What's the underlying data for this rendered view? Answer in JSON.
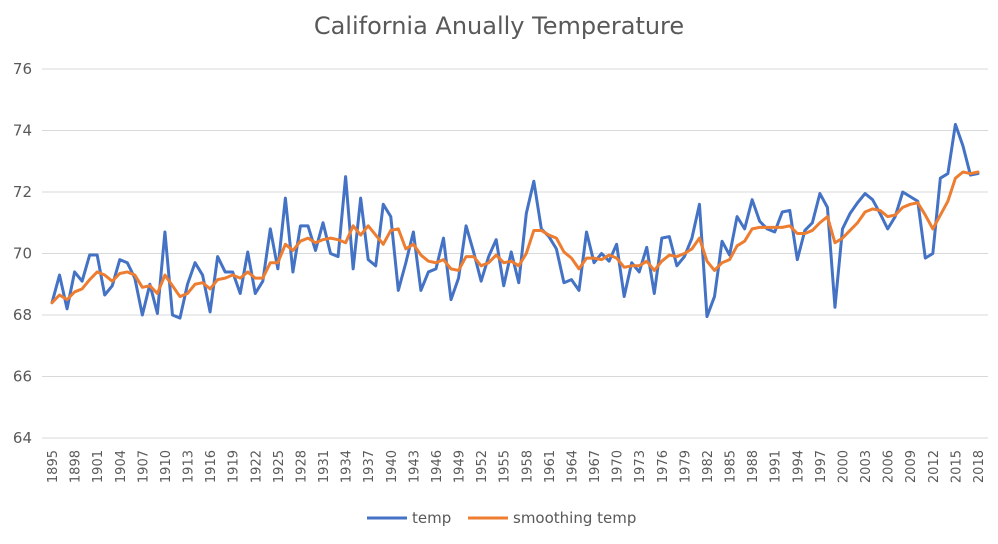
{
  "chart_data": {
    "type": "line",
    "title": "California Anually Temperature",
    "xlabel": "",
    "ylabel": "",
    "ylim": [
      64,
      76
    ],
    "yticks": [
      64,
      66,
      68,
      70,
      72,
      74,
      76
    ],
    "grid": "horizontal",
    "legend_position": "bottom",
    "x_tick_labels": [
      "1895",
      "1898",
      "1901",
      "1904",
      "1907",
      "1910",
      "1913",
      "1916",
      "1919",
      "1922",
      "1925",
      "1928",
      "1931",
      "1934",
      "1937",
      "1940",
      "1943",
      "1946",
      "1949",
      "1952",
      "1955",
      "1958",
      "1961",
      "1964",
      "1967",
      "1970",
      "1973",
      "1976",
      "1979",
      "1982",
      "1985",
      "1988",
      "1991",
      "1994",
      "1997",
      "2000",
      "2003",
      "2006",
      "2009",
      "2012",
      "2015",
      "2018"
    ],
    "x": [
      1895,
      1896,
      1897,
      1898,
      1899,
      1900,
      1901,
      1902,
      1903,
      1904,
      1905,
      1906,
      1907,
      1908,
      1909,
      1910,
      1911,
      1912,
      1913,
      1914,
      1915,
      1916,
      1917,
      1918,
      1919,
      1920,
      1921,
      1922,
      1923,
      1924,
      1925,
      1926,
      1927,
      1928,
      1929,
      1930,
      1931,
      1932,
      1933,
      1934,
      1935,
      1936,
      1937,
      1938,
      1939,
      1940,
      1941,
      1942,
      1943,
      1944,
      1945,
      1946,
      1947,
      1948,
      1949,
      1950,
      1951,
      1952,
      1953,
      1954,
      1955,
      1956,
      1957,
      1958,
      1959,
      1960,
      1961,
      1962,
      1963,
      1964,
      1965,
      1966,
      1967,
      1968,
      1969,
      1970,
      1971,
      1972,
      1973,
      1974,
      1975,
      1976,
      1977,
      1978,
      1979,
      1980,
      1981,
      1982,
      1983,
      1984,
      1985,
      1986,
      1987,
      1988,
      1989,
      1990,
      1991,
      1992,
      1993,
      1994,
      1995,
      1996,
      1997,
      1998,
      1999,
      2000,
      2001,
      2002,
      2003,
      2004,
      2005,
      2006,
      2007,
      2008,
      2009,
      2010,
      2011,
      2012,
      2013,
      2014,
      2015,
      2016,
      2017,
      2018
    ],
    "series": [
      {
        "name": "temp",
        "color": "#4472C4",
        "values": [
          68.4,
          69.3,
          68.2,
          69.4,
          69.1,
          69.95,
          69.95,
          68.65,
          68.95,
          69.8,
          69.7,
          69.2,
          68.0,
          69.0,
          68.05,
          70.7,
          68.0,
          67.9,
          69.0,
          69.7,
          69.3,
          68.1,
          69.9,
          69.4,
          69.4,
          68.7,
          70.05,
          68.7,
          69.1,
          70.8,
          69.5,
          71.8,
          69.4,
          70.9,
          70.9,
          70.1,
          71.0,
          70.0,
          69.9,
          72.5,
          69.5,
          71.8,
          69.8,
          69.6,
          71.6,
          71.2,
          68.8,
          69.7,
          70.7,
          68.8,
          69.4,
          69.5,
          70.5,
          68.5,
          69.2,
          70.9,
          70.05,
          69.1,
          69.9,
          70.45,
          68.95,
          70.05,
          69.05,
          71.3,
          72.35,
          70.8,
          70.55,
          70.15,
          69.05,
          69.15,
          68.8,
          70.7,
          69.7,
          70.0,
          69.75,
          70.3,
          68.6,
          69.7,
          69.4,
          70.2,
          68.7,
          70.5,
          70.55,
          69.6,
          69.9,
          70.5,
          71.6,
          67.95,
          68.6,
          70.4,
          69.95,
          71.2,
          70.8,
          71.75,
          71.05,
          70.8,
          70.7,
          71.35,
          71.4,
          69.8,
          70.75,
          71.0,
          71.95,
          71.5,
          68.25,
          70.8,
          71.3,
          71.65,
          71.95,
          71.75,
          71.3,
          70.8,
          71.2,
          72.0,
          71.85,
          71.7,
          69.85,
          70.0,
          72.45,
          72.6,
          74.2,
          73.5,
          72.55,
          72.6
        ]
      },
      {
        "name": "smoothing temp",
        "color": "#ED7D31",
        "values": [
          68.4,
          68.65,
          68.5,
          68.75,
          68.85,
          69.15,
          69.4,
          69.3,
          69.1,
          69.35,
          69.4,
          69.3,
          68.9,
          68.95,
          68.7,
          69.3,
          68.95,
          68.6,
          68.7,
          69.0,
          69.05,
          68.85,
          69.15,
          69.2,
          69.3,
          69.2,
          69.4,
          69.2,
          69.2,
          69.7,
          69.7,
          70.3,
          70.1,
          70.4,
          70.5,
          70.35,
          70.45,
          70.5,
          70.45,
          70.35,
          70.9,
          70.6,
          70.9,
          70.6,
          70.3,
          70.75,
          70.8,
          70.15,
          70.3,
          69.95,
          69.75,
          69.7,
          69.8,
          69.5,
          69.45,
          69.9,
          69.9,
          69.6,
          69.7,
          69.95,
          69.7,
          69.75,
          69.6,
          70.0,
          70.75,
          70.75,
          70.6,
          70.5,
          70.05,
          69.85,
          69.5,
          69.85,
          69.85,
          69.8,
          69.95,
          69.85,
          69.55,
          69.6,
          69.6,
          69.75,
          69.45,
          69.75,
          69.95,
          69.9,
          70.0,
          70.15,
          70.5,
          69.75,
          69.45,
          69.7,
          69.8,
          70.25,
          70.4,
          70.8,
          70.85,
          70.85,
          70.85,
          70.85,
          70.9,
          70.65,
          70.65,
          70.75,
          71.0,
          71.2,
          70.35,
          70.5,
          70.75,
          71.0,
          71.35,
          71.45,
          71.4,
          71.2,
          71.25,
          71.5,
          71.6,
          71.65,
          71.25,
          70.8,
          71.25,
          71.7,
          72.45,
          72.65,
          72.6,
          72.65
        ]
      }
    ]
  }
}
